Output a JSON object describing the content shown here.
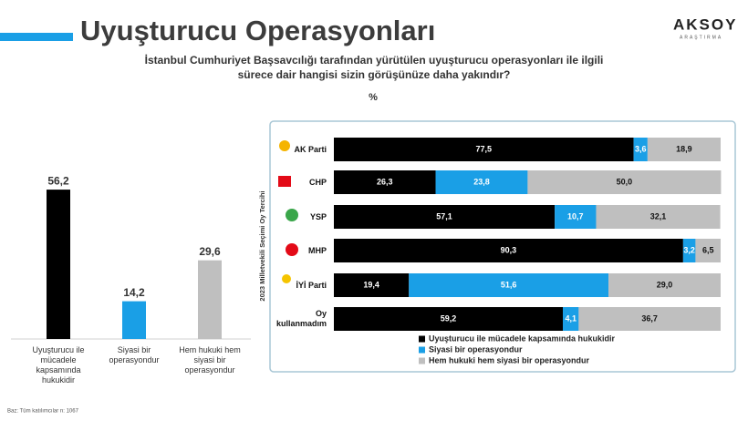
{
  "header": {
    "title": "Uyuşturucu Operasyonları",
    "logo": "AKSOY",
    "logo_sub": "ARAŞTIRMA"
  },
  "subtitle": "İstanbul Cumhuriyet Başsavcılığı tarafından yürütülen uyuşturucu operasyonları ile ilgili sürece dair hangisi sizin görüşünüze daha yakındır?",
  "unit": "%",
  "footnote": "Baz: Tüm katılımcılar n: 1067",
  "chart_data": [
    {
      "type": "bar",
      "categories": [
        "Uyuşturucu ile mücadele kapsamında hukukidir",
        "Siyasi bir operasyondur",
        "Hem hukuki hem siyasi bir operasyondur"
      ],
      "values": [
        56.2,
        14.2,
        29.6
      ],
      "value_labels": [
        "56,2",
        "14,2",
        "29,6"
      ],
      "colors": [
        "#000000",
        "#1a9fe6",
        "#bfbfbf"
      ],
      "ylim": [
        0,
        60
      ]
    },
    {
      "type": "stacked-bar-horizontal",
      "y_label": "2023 Milletvekili Seçimi Oy Tercihi",
      "categories": [
        "AK Parti",
        "CHP",
        "YSP",
        "MHP",
        "İYİ Parti",
        "Oy kullanmadım"
      ],
      "series": [
        {
          "name": "Uyuşturucu ile mücadele kapsamında hukukidir",
          "color": "#000000",
          "values": [
            77.5,
            26.3,
            57.1,
            90.3,
            19.4,
            59.2
          ],
          "value_labels": [
            "77,5",
            "26,3",
            "57,1",
            "90,3",
            "19,4",
            "59,2"
          ]
        },
        {
          "name": "Siyasi bir operasyondur",
          "color": "#1a9fe6",
          "values": [
            3.6,
            23.8,
            10.7,
            3.2,
            51.6,
            4.1
          ],
          "value_labels": [
            "3,6",
            "23,8",
            "10,7",
            "3,2",
            "51,6",
            "4,1"
          ]
        },
        {
          "name": "Hem hukuki hem siyasi bir operasyondur",
          "color": "#bfbfbf",
          "values": [
            18.9,
            50.0,
            32.1,
            6.5,
            29.0,
            36.7
          ],
          "value_labels": [
            "18,9",
            "50,0",
            "32,1",
            "6,5",
            "29,0",
            "36,7"
          ]
        }
      ],
      "xlim": [
        0,
        100
      ]
    }
  ]
}
